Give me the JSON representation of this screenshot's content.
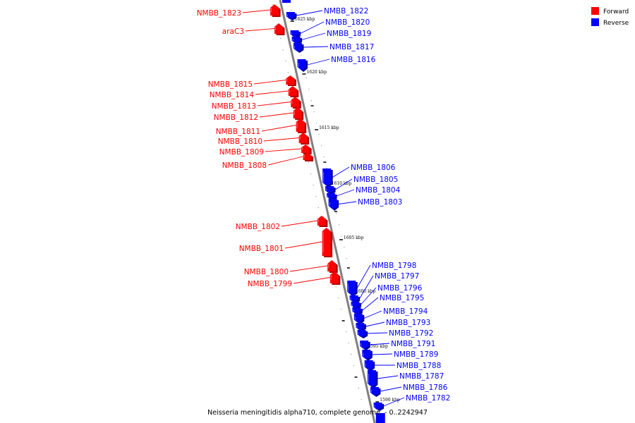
{
  "title": "Neisseria meningitidis alpha710, complete genome. - 0..2242947",
  "legend": [
    {
      "label": "Forward",
      "color": "#ff0000"
    },
    {
      "label": "Reverse",
      "color": "#0000ff"
    }
  ],
  "colors": {
    "forward": "#ff0000",
    "reverse": "#0000ff",
    "backbone": "#808080"
  },
  "ticks": [
    "1625 kbp",
    "1620 kbp",
    "1615 kbp",
    "1610 kbp",
    "1605 kbp",
    "1600 kbp",
    "1595 kbp",
    "1590 kbp"
  ],
  "forward_genes": [
    "NMBB_1823",
    "araC3",
    "NMBB_1815",
    "NMBB_1814",
    "NMBB_1813",
    "NMBB_1812",
    "NMBB_1811",
    "NMBB_1810",
    "NMBB_1809",
    "NMBB_1808",
    "NMBB_1802",
    "NMBB_1801",
    "NMBB_1800",
    "NMBB_1799"
  ],
  "reverse_genes": [
    "NMBB_1822",
    "NMBB_1820",
    "NMBB_1819",
    "NMBB_1817",
    "NMBB_1816",
    "NMBB_1806",
    "NMBB_1805",
    "NMBB_1804",
    "NMBB_1803",
    "NMBB_1798",
    "NMBB_1797",
    "NMBB_1796",
    "NMBB_1795",
    "NMBB_1794",
    "NMBB_1793",
    "NMBB_1792",
    "NMBB_1791",
    "NMBB_1789",
    "NMBB_1788",
    "NMBB_1787",
    "NMBB_1786",
    "NMBB_1782"
  ]
}
